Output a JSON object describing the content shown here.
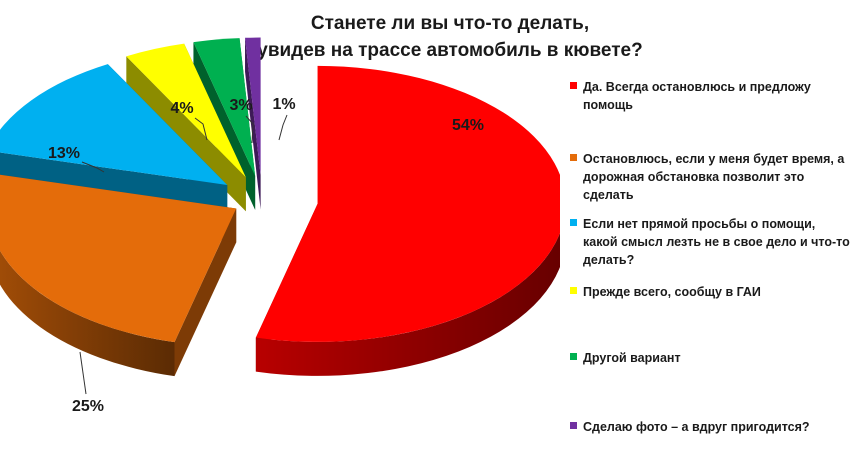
{
  "title_lines": [
    "Станете ли вы что-то делать,",
    "увидев на трассе автомобиль в кювете?"
  ],
  "chart_data": {
    "type": "pie",
    "title": "Станете ли вы что-то делать, увидев на трассе автомобиль в кювете?",
    "three_d": true,
    "exploded": true,
    "legend_position": "right",
    "slices": [
      {
        "label": "Да. Всегда остановлюсь и предложу помощь",
        "value": 54,
        "value_label": "54%",
        "color": "#ff0000"
      },
      {
        "label": "Остановлюсь, если у меня будет время, а дорожная обстановка позволит это сделать",
        "value": 25,
        "value_label": "25%",
        "color": "#e46c0a"
      },
      {
        "label": "Если нет прямой просьбы о помощи, какой смысл лезть не в свое дело и что-то делать?",
        "value": 13,
        "value_label": "13%",
        "color": "#00b0f0"
      },
      {
        "label": "Прежде всего, сообщу в ГАИ",
        "value": 4,
        "value_label": "4%",
        "color": "#ffff00"
      },
      {
        "label": "Другой вариант",
        "value": 3,
        "value_label": "3%",
        "color": "#00b050"
      },
      {
        "label": "Сделаю фото – а вдруг пригодится?",
        "value": 1,
        "value_label": "1%",
        "color": "#7030a0"
      }
    ]
  }
}
